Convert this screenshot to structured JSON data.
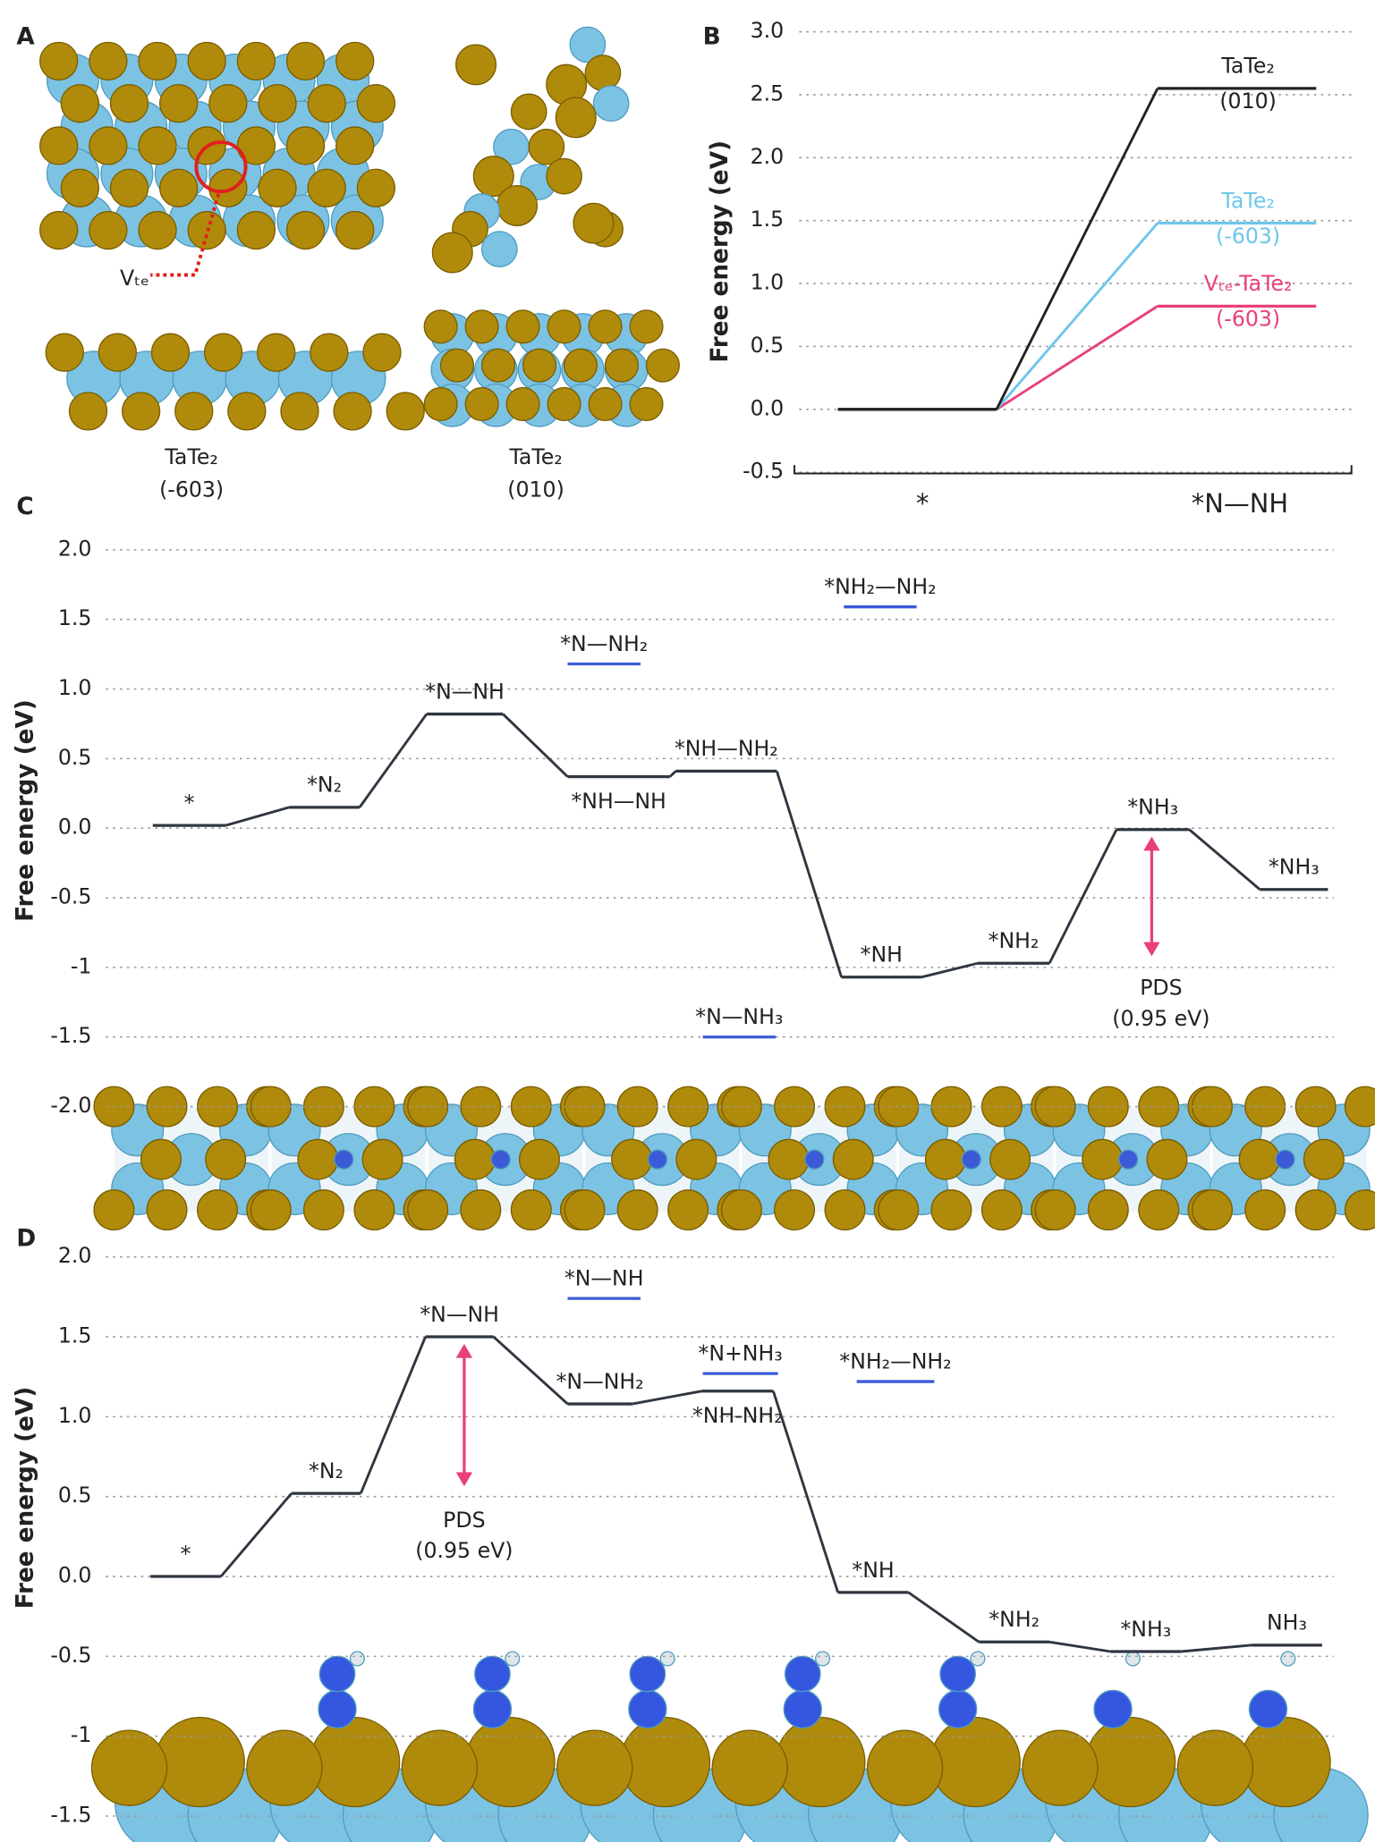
{
  "panel_labels": [
    "A",
    "B",
    "C",
    "D"
  ],
  "panel_a": {
    "structures": [
      {
        "labels": [
          "TaTe₂",
          "(-603)"
        ]
      },
      {
        "labels": [
          "TaTe₂",
          "(010)"
        ]
      }
    ],
    "vacancy_label": "Vₜₑ"
  },
  "chart_data": [
    {
      "type": "step-line",
      "ylabel": "Free energy (eV)",
      "categories": [
        "*",
        "*N—NH"
      ],
      "ylim": [
        -0.5,
        3.0
      ],
      "yticks": [
        -0.5,
        {
          "value": 0,
          "label": "0.0"
        },
        0.5,
        {
          "value": 1,
          "label": "1.0"
        },
        1.5,
        {
          "value": 2,
          "label": "2.0"
        },
        2.5,
        {
          "value": 3,
          "label": "3.0"
        }
      ],
      "grid": true,
      "series": [
        {
          "labels": [
            "TaTe₂",
            "(010)"
          ],
          "color": "#222222",
          "values": [
            0,
            2.55
          ]
        },
        {
          "labels": [
            "TaTe₂",
            "(-603)"
          ],
          "color": "#6ec6ea",
          "values": [
            0,
            1.48
          ]
        },
        {
          "labels": [
            "Vₜₑ-TaTe₂",
            "(-603)"
          ],
          "color": "#e8407a",
          "values": [
            0,
            0.82
          ]
        }
      ]
    },
    {
      "type": "energy-diagram",
      "ylabel": "Free energy (eV)",
      "ylim": [
        -2.0,
        2.0
      ],
      "yticks": [
        {
          "value": -2,
          "label": "-2.0"
        },
        -1.5,
        -1.0,
        -0.5,
        {
          "value": 0,
          "label": "0.0"
        },
        0.5,
        {
          "value": 1,
          "label": "1.0"
        },
        1.5,
        {
          "value": 2,
          "label": "2.0"
        }
      ],
      "grid": true,
      "color": "#2f3640",
      "side_color": "#3b5bd6",
      "arrow_color": "#e8407a",
      "steps": [
        {
          "label": "*",
          "value": 0.02
        },
        {
          "label": "*N₂",
          "value": 0.15
        },
        {
          "label": "*N—NH",
          "value": 0.82
        },
        {
          "label": "*NH—NH",
          "value": 0.37
        },
        {
          "label": "*NH—NH₂",
          "value": 0.41
        },
        {
          "label": "*NH",
          "value": -1.07
        },
        {
          "label": "*NH₂",
          "value": -0.97
        },
        {
          "label": "*NH₃",
          "value": -0.01
        },
        {
          "label": "*NH₃",
          "value": -0.44
        }
      ],
      "side_states": [
        {
          "label": "*N—NH₂",
          "value": 1.18
        },
        {
          "label": "*NH₂—NH₂",
          "value": 1.59
        },
        {
          "label": "*N—NH₃",
          "value": -1.5
        }
      ],
      "annotation": [
        "PDS",
        "(0.95 eV)"
      ]
    },
    {
      "type": "energy-diagram",
      "ylabel": "Free energy (eV)",
      "ylim": [
        -1.5,
        2.0
      ],
      "yticks": [
        -1.5,
        -1.0,
        -0.5,
        {
          "value": 0,
          "label": "0.0"
        },
        0.5,
        {
          "value": 1,
          "label": "1.0"
        },
        1.5,
        {
          "value": 2,
          "label": "2.0"
        }
      ],
      "grid": true,
      "color": "#2f3640",
      "side_color": "#3b5bd6",
      "arrow_color": "#e8407a",
      "steps": [
        {
          "label": "*",
          "value": 0
        },
        {
          "label": "*N₂",
          "value": 0.52
        },
        {
          "label": "*N—NH",
          "value": 1.5
        },
        {
          "label": "*N—NH₂",
          "value": 1.08
        },
        {
          "label": "*NH-NH₂",
          "value": 1.16
        },
        {
          "label": "*NH",
          "value": -0.1
        },
        {
          "label": "*NH₂",
          "value": -0.41
        },
        {
          "label": "*NH₃",
          "value": -0.47
        },
        {
          "label": "NH₃",
          "value": -0.43
        }
      ],
      "side_states": [
        {
          "label": "*N—NH",
          "value": 1.74
        },
        {
          "label": "*N+NH₃",
          "value": 1.27
        },
        {
          "label": "*NH₂—NH₂",
          "value": 1.22
        }
      ],
      "annotation": [
        "PDS",
        "(0.95 eV)"
      ]
    }
  ]
}
